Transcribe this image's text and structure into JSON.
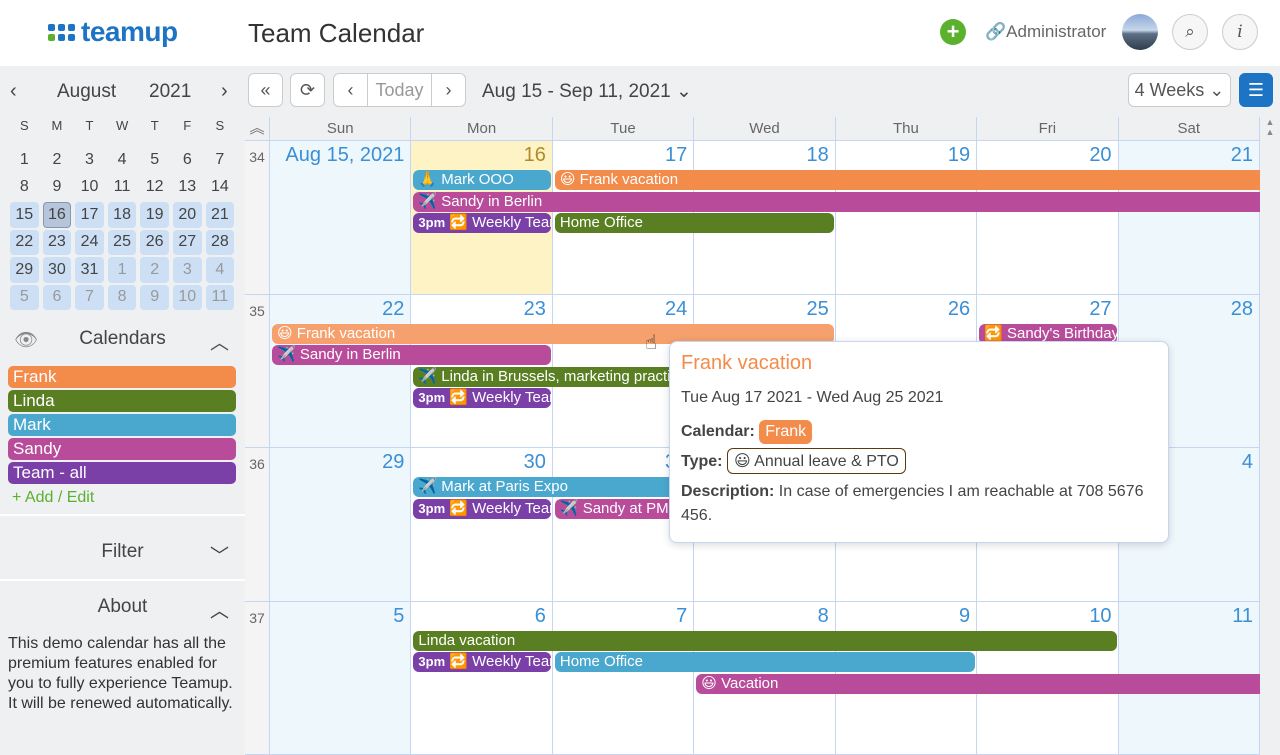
{
  "app": {
    "logo": "teamup",
    "title": "Team Calendar",
    "admin": "Administrator"
  },
  "mini": {
    "month": "August",
    "year": "2021",
    "dows": [
      "S",
      "M",
      "T",
      "W",
      "T",
      "F",
      "S"
    ],
    "days": [
      [
        "1",
        ""
      ],
      [
        "2",
        ""
      ],
      [
        "3",
        ""
      ],
      [
        "4",
        ""
      ],
      [
        "5",
        ""
      ],
      [
        "6",
        ""
      ],
      [
        "7",
        ""
      ],
      [
        "8",
        ""
      ],
      [
        "9",
        ""
      ],
      [
        "10",
        ""
      ],
      [
        "11",
        ""
      ],
      [
        "12",
        ""
      ],
      [
        "13",
        ""
      ],
      [
        "14",
        ""
      ],
      [
        "15",
        "r"
      ],
      [
        "16",
        "t"
      ],
      [
        "17",
        "r"
      ],
      [
        "18",
        "r"
      ],
      [
        "19",
        "r"
      ],
      [
        "20",
        "r"
      ],
      [
        "21",
        "r"
      ],
      [
        "22",
        "r"
      ],
      [
        "23",
        "r"
      ],
      [
        "24",
        "r"
      ],
      [
        "25",
        "r"
      ],
      [
        "26",
        "r"
      ],
      [
        "27",
        "r"
      ],
      [
        "28",
        "r"
      ],
      [
        "29",
        "r"
      ],
      [
        "30",
        "r"
      ],
      [
        "31",
        "r"
      ],
      [
        "1",
        "r o"
      ],
      [
        "2",
        "r o"
      ],
      [
        "3",
        "r o"
      ],
      [
        "4",
        "r o"
      ],
      [
        "5",
        "r o"
      ],
      [
        "6",
        "r o"
      ],
      [
        "7",
        "r o"
      ],
      [
        "8",
        "r o"
      ],
      [
        "9",
        "r o"
      ],
      [
        "10",
        "r o"
      ],
      [
        "11",
        "r o"
      ]
    ]
  },
  "sidebar": {
    "calendars_label": "Calendars",
    "calendars": [
      {
        "name": "Frank",
        "color": "#f38b4a"
      },
      {
        "name": "Linda",
        "color": "#5a7f22"
      },
      {
        "name": "Mark",
        "color": "#4aa8cf"
      },
      {
        "name": "Sandy",
        "color": "#b84c9b"
      },
      {
        "name": "Team - all",
        "color": "#7b3fa8"
      }
    ],
    "add_edit": "+ Add / Edit",
    "filter": "Filter",
    "about": "About",
    "about_text": "This demo calendar has all the premium features enabled for you to fully experience Teamup. It will be renewed automatically."
  },
  "toolbar": {
    "today": "Today",
    "range": "Aug 15 - Sep 11, 2021",
    "view": "4 Weeks"
  },
  "grid": {
    "dows": [
      "Sun",
      "Mon",
      "Tue",
      "Wed",
      "Thu",
      "Fri",
      "Sat"
    ],
    "weeks": [
      "34",
      "35",
      "36",
      "37"
    ],
    "days": [
      [
        "Aug 15, 2021",
        "16",
        "17",
        "18",
        "19",
        "20",
        "21"
      ],
      [
        "22",
        "23",
        "24",
        "25",
        "26",
        "27",
        "28"
      ],
      [
        "29",
        "30",
        "31",
        "1",
        "2",
        "3",
        "4"
      ],
      [
        "5",
        "6",
        "7",
        "8",
        "9",
        "10",
        "11"
      ]
    ],
    "today": [
      0,
      1
    ]
  },
  "events": [
    {
      "row": 0,
      "col": 1,
      "span": 1,
      "lane": 0,
      "title": "🙏 Mark OOO",
      "color": "#4aa8cf"
    },
    {
      "row": 0,
      "col": 2,
      "span": 5,
      "lane": 0,
      "title": "😃 Frank vacation",
      "color": "#f38b4a",
      "cont": true
    },
    {
      "row": 0,
      "col": 1,
      "span": 6,
      "lane": 1,
      "title": "✈️ Sandy in Berlin",
      "color": "#b84c9b",
      "cont": true
    },
    {
      "row": 0,
      "col": 1,
      "span": 1,
      "lane": 2,
      "time": "3pm",
      "title": "🔁 Weekly Team",
      "color": "#7b3fa8"
    },
    {
      "row": 0,
      "col": 2,
      "span": 2,
      "lane": 2,
      "title": "Home Office",
      "color": "#5a7f22"
    },
    {
      "row": 1,
      "col": 0,
      "span": 4,
      "lane": 0,
      "title": "😃 Frank vacation",
      "color": "#f5a06d"
    },
    {
      "row": 1,
      "col": 5,
      "span": 1,
      "lane": 0,
      "title": "🔁 Sandy's Birthday",
      "color": "#b84c9b"
    },
    {
      "row": 1,
      "col": 0,
      "span": 2,
      "lane": 1,
      "title": "✈️ Sandy in Berlin",
      "color": "#b84c9b"
    },
    {
      "row": 1,
      "col": 1,
      "span": 3,
      "lane": 2,
      "title": "✈️ Linda in Brussels, marketing practice",
      "color": "#5a7f22"
    },
    {
      "row": 1,
      "col": 1,
      "span": 1,
      "lane": 3,
      "time": "3pm",
      "title": "🔁 Weekly Team",
      "color": "#7b3fa8"
    },
    {
      "row": 2,
      "col": 1,
      "span": 3,
      "lane": 0,
      "title": "✈️ Mark at Paris Expo",
      "color": "#4aa8cf"
    },
    {
      "row": 2,
      "col": 1,
      "span": 1,
      "lane": 1,
      "time": "3pm",
      "title": "🔁 Weekly Team",
      "color": "#7b3fa8"
    },
    {
      "row": 2,
      "col": 2,
      "span": 2,
      "lane": 1,
      "title": "✈️ Sandy at PMC",
      "color": "#b84c9b"
    },
    {
      "row": 3,
      "col": 1,
      "span": 5,
      "lane": 0,
      "title": "Linda vacation",
      "color": "#5a7f22"
    },
    {
      "row": 3,
      "col": 1,
      "span": 1,
      "lane": 1,
      "time": "3pm",
      "title": "🔁 Weekly Team",
      "color": "#7b3fa8"
    },
    {
      "row": 3,
      "col": 2,
      "span": 3,
      "lane": 1,
      "title": "Home Office",
      "color": "#4aa8cf"
    },
    {
      "row": 3,
      "col": 3,
      "span": 4,
      "lane": 2,
      "title": "😃 Vacation",
      "color": "#b84c9b",
      "cont": true
    }
  ],
  "popup": {
    "title": "Frank vacation",
    "dates": "Tue Aug 17 2021 - Wed Aug 25 2021",
    "calendar_label": "Calendar:",
    "calendar": "Frank",
    "type_label": "Type:",
    "type": "😃 Annual leave & PTO",
    "desc_label": "Description:",
    "desc": "In case of emergencies I am reachable at 708 5676 456."
  }
}
